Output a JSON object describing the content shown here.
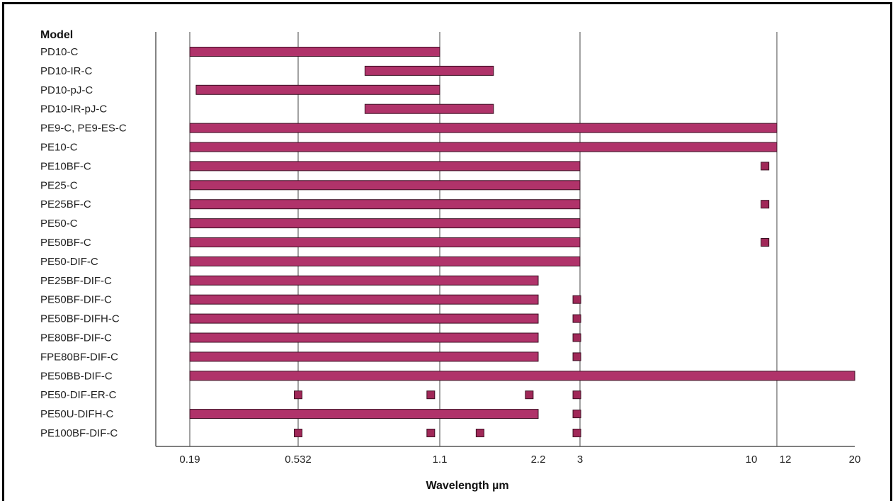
{
  "chart_data": {
    "type": "bar",
    "subtype": "range",
    "row_header": "Model",
    "xlabel": "Wavelength µm",
    "x_ticks": [
      "0.19",
      "0.532",
      "1.1",
      "2.2",
      "3",
      "10",
      "12",
      "20"
    ],
    "grid_lines": [
      "0.19",
      "0.532",
      "1.1",
      "3",
      "12"
    ],
    "colors": {
      "bar": "#b0336a",
      "marker": "#a02858"
    },
    "rows": [
      {
        "model": "PD10-C",
        "ranges": [
          [
            "0.19",
            "1.1"
          ]
        ],
        "points": []
      },
      {
        "model": "PD10-IR-C",
        "ranges": [
          [
            "0.8",
            "1.7"
          ]
        ],
        "points": []
      },
      {
        "model": "PD10-pJ-C",
        "ranges": [
          [
            "0.21",
            "1.1"
          ]
        ],
        "points": []
      },
      {
        "model": "PD10-IR-pJ-C",
        "ranges": [
          [
            "0.8",
            "1.7"
          ]
        ],
        "points": []
      },
      {
        "model": "PE9-C, PE9-ES-C",
        "ranges": [
          [
            "0.19",
            "12"
          ]
        ],
        "points": []
      },
      {
        "model": "PE10-C",
        "ranges": [
          [
            "0.19",
            "12"
          ]
        ],
        "points": []
      },
      {
        "model": "PE10BF-C",
        "ranges": [
          [
            "0.19",
            "3"
          ]
        ],
        "points": [
          "10.6"
        ]
      },
      {
        "model": "PE25-C",
        "ranges": [
          [
            "0.19",
            "3"
          ]
        ],
        "points": []
      },
      {
        "model": "PE25BF-C",
        "ranges": [
          [
            "0.19",
            "3"
          ]
        ],
        "points": [
          "10.6"
        ]
      },
      {
        "model": "PE50-C",
        "ranges": [
          [
            "0.19",
            "3"
          ]
        ],
        "points": []
      },
      {
        "model": "PE50BF-C",
        "ranges": [
          [
            "0.19",
            "3"
          ]
        ],
        "points": [
          "10.6"
        ]
      },
      {
        "model": "PE50-DIF-C",
        "ranges": [
          [
            "0.19",
            "3"
          ]
        ],
        "points": []
      },
      {
        "model": "PE25BF-DIF-C",
        "ranges": [
          [
            "0.19",
            "2.2"
          ]
        ],
        "points": []
      },
      {
        "model": "PE50BF-DIF-C",
        "ranges": [
          [
            "0.19",
            "2.2"
          ]
        ],
        "points": [
          "2.94"
        ]
      },
      {
        "model": "PE50BF-DIFH-C",
        "ranges": [
          [
            "0.19",
            "2.2"
          ]
        ],
        "points": [
          "2.94"
        ]
      },
      {
        "model": "PE80BF-DIF-C",
        "ranges": [
          [
            "0.19",
            "2.2"
          ]
        ],
        "points": [
          "2.94"
        ]
      },
      {
        "model": "FPE80BF-DIF-C",
        "ranges": [
          [
            "0.19",
            "2.2"
          ]
        ],
        "points": [
          "2.94"
        ]
      },
      {
        "model": "PE50BB-DIF-C",
        "ranges": [
          [
            "0.19",
            "20"
          ]
        ],
        "points": []
      },
      {
        "model": "PE50-DIF-ER-C",
        "ranges": [],
        "points": [
          "0.532",
          "1.064",
          "2.1",
          "2.94"
        ]
      },
      {
        "model": "PE50U-DIFH-C",
        "ranges": [
          [
            "0.19",
            "2.2"
          ]
        ],
        "points": [
          "2.94"
        ]
      },
      {
        "model": "PE100BF-DIF-C",
        "ranges": [],
        "points": [
          "0.532",
          "1.064",
          "1.55",
          "2.94"
        ]
      }
    ]
  }
}
